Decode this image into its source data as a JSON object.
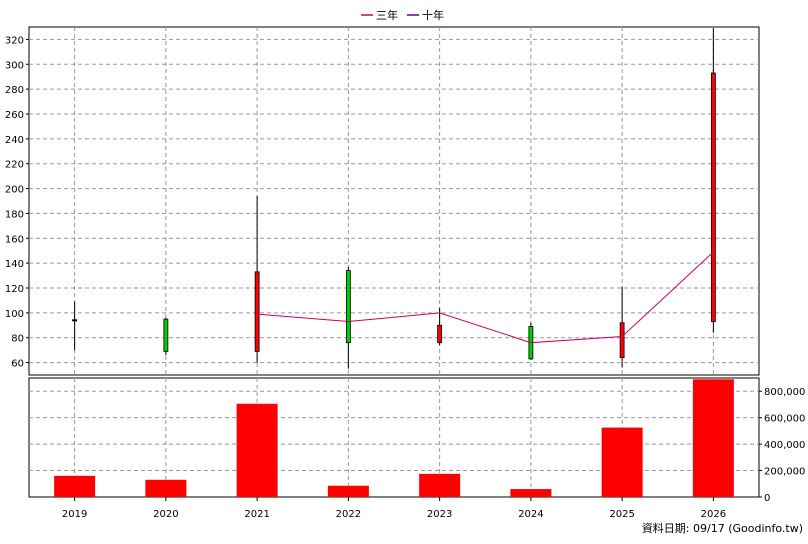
{
  "chart_data": {
    "type": "candlestick",
    "legend": [
      {
        "name": "三年",
        "color": "#cc0066"
      },
      {
        "name": "十年",
        "color": "#660099"
      }
    ],
    "categories": [
      "2019",
      "2020",
      "2021",
      "2022",
      "2023",
      "2024",
      "2025",
      "2026"
    ],
    "price": {
      "ylim": [
        50,
        330
      ],
      "yticks": [
        60,
        80,
        100,
        120,
        140,
        160,
        180,
        200,
        220,
        240,
        260,
        280,
        300,
        320
      ],
      "candles": [
        {
          "open": 94,
          "close": 94,
          "high": 109,
          "low": 70
        },
        {
          "open": 95,
          "close": 69,
          "high": 96,
          "low": 66
        },
        {
          "open": 69,
          "close": 133,
          "high": 194,
          "low": 60
        },
        {
          "open": 134,
          "close": 76,
          "high": 137,
          "low": 55
        },
        {
          "open": 76,
          "close": 90,
          "high": 104,
          "low": 74
        },
        {
          "open": 89,
          "close": 63,
          "high": 92,
          "low": 62
        },
        {
          "open": 64,
          "close": 92,
          "high": 121,
          "low": 56
        },
        {
          "open": 93,
          "close": 293,
          "high": 329,
          "low": 84
        }
      ],
      "three_year_line": [
        null,
        null,
        99,
        93,
        100,
        76,
        81,
        149
      ]
    },
    "volume": {
      "ylim": [
        0,
        900000
      ],
      "yticks": [
        0,
        200000,
        400000,
        600000,
        800000
      ],
      "ytick_labels": [
        "0",
        "200,000",
        "400,000",
        "600,000",
        "800,000"
      ],
      "values": [
        160000,
        130000,
        705000,
        85000,
        175000,
        60000,
        525000,
        890000
      ],
      "color": "#ff0000"
    },
    "colors": {
      "up": "#ff0000",
      "down": "#00cc00",
      "grid": "#999999"
    }
  },
  "footer": "資料日期: 09/17  (Goodinfo.tw)"
}
